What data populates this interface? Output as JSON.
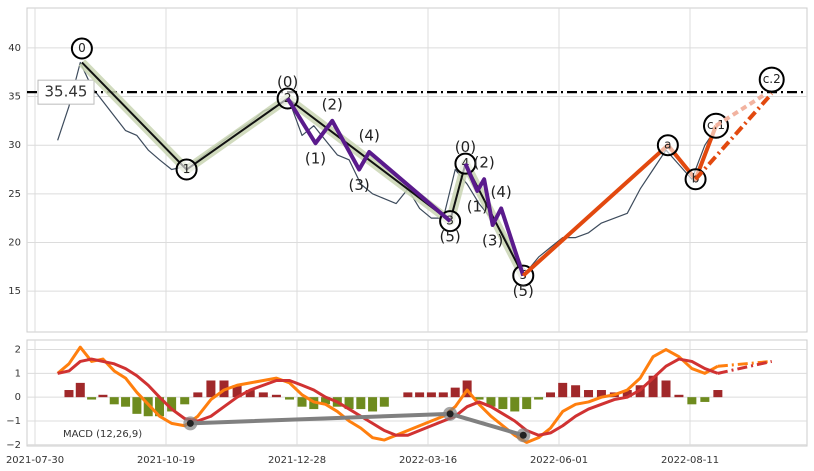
{
  "chart_data": [
    {
      "type": "line",
      "ylim": [
        10.8,
        44.1
      ],
      "yticks": [
        15,
        20,
        25,
        30,
        35,
        40
      ],
      "grid": true,
      "x": [
        "2021-08-13",
        "2021-08-20",
        "2021-08-27",
        "2021-09-03",
        "2021-09-10",
        "2021-09-17",
        "2021-09-24",
        "2021-10-01",
        "2021-10-08",
        "2021-10-15",
        "2021-10-22",
        "2021-10-29",
        "2021-11-05",
        "2021-11-12",
        "2021-11-19",
        "2021-11-26",
        "2021-12-03",
        "2021-12-10",
        "2021-12-17",
        "2021-12-24",
        "2021-12-31",
        "2022-01-07",
        "2022-01-14",
        "2022-01-21",
        "2022-01-28",
        "2022-02-04",
        "2022-02-11",
        "2022-02-18",
        "2022-02-25",
        "2022-03-04",
        "2022-03-11",
        "2022-03-18",
        "2022-03-25",
        "2022-04-01",
        "2022-04-08",
        "2022-04-15",
        "2022-04-22",
        "2022-04-29",
        "2022-05-06",
        "2022-05-13",
        "2022-05-20",
        "2022-05-27",
        "2022-06-03",
        "2022-06-10",
        "2022-06-17",
        "2022-06-24",
        "2022-07-01",
        "2022-07-08",
        "2022-07-15",
        "2022-07-22",
        "2022-07-29",
        "2022-08-05",
        "2022-08-12",
        "2022-08-19",
        "2022-08-26"
      ],
      "series": [
        {
          "color": "#3d4b5c",
          "values": [
            30.5,
            34,
            38.5,
            36,
            34.5,
            33,
            31.5,
            31,
            29.5,
            28.5,
            27.5,
            27.8,
            28.5,
            29.5,
            30.5,
            31.5,
            32.3,
            33.5,
            34,
            34.5,
            31,
            32,
            30.5,
            29,
            28.5,
            26,
            25,
            24.5,
            24,
            25.5,
            23.5,
            22.5,
            22.5,
            27.5,
            26,
            24,
            22.5,
            21,
            18.5,
            17,
            18.5,
            19.5,
            20.5,
            20.5,
            21,
            22,
            22.5,
            23,
            25.5,
            27.5,
            29.5,
            28,
            26.5,
            30,
            32
          ]
        }
      ],
      "hline": {
        "value": 35.45,
        "label": "35.45",
        "color": "#000000",
        "linestyle": "dashdot"
      },
      "waves": [
        {
          "color": "#111111",
          "halo": "#c9d5b3",
          "circled": true,
          "linestyle": "solid",
          "x": [
            "2021-08-28",
            "2021-10-30",
            "2021-12-23",
            "2022-03-29",
            "2022-04-07",
            "2022-05-11"
          ],
          "values": [
            38.5,
            27.5,
            34.8,
            22.2,
            28.1,
            16.6
          ],
          "labels": [
            "0",
            "1",
            "2",
            "3",
            "4",
            "5"
          ]
        },
        {
          "color": "#5a1a8c",
          "circled": false,
          "linestyle": "solid",
          "x": [
            "2021-12-23",
            "2022-01-08",
            "2022-01-18",
            "2022-02-03",
            "2022-02-09",
            "2022-03-29"
          ],
          "values": [
            34.8,
            30.2,
            32.5,
            27.5,
            29.3,
            22.2
          ],
          "labels": [
            "(0)",
            "(1)",
            "(2)",
            "(3)",
            "(4)",
            "(5)"
          ]
        },
        {
          "color": "#5a1a8c",
          "circled": false,
          "linestyle": "solid",
          "x": [
            "2022-04-07",
            "2022-04-14",
            "2022-04-18",
            "2022-04-23",
            "2022-04-28",
            "2022-05-11"
          ],
          "values": [
            28.1,
            25.3,
            26.5,
            21.8,
            23.5,
            16.6
          ],
          "labels": [
            "(0)",
            "(1)",
            "(2)",
            "(3)",
            "(4)",
            "(5)"
          ]
        },
        {
          "color": "#e2490f",
          "circled": true,
          "linestyle": "solid",
          "x": [
            "2022-05-11",
            "2022-07-30",
            "2022-08-14",
            "2022-08-25"
          ],
          "values": [
            16.6,
            30.0,
            26.5,
            32.0
          ],
          "labels": [
            null,
            "a",
            "b",
            "c.1"
          ]
        },
        {
          "color": "#e2490f",
          "circled": true,
          "linestyle": "dashdot",
          "x": [
            "2022-08-14",
            "2022-09-24"
          ],
          "values": [
            26.5,
            35.3
          ],
          "labels": [
            null,
            "c.2"
          ]
        },
        {
          "color": "#f2b3a0",
          "circled": false,
          "linestyle": "dashed",
          "x": [
            "2022-08-25",
            "2022-09-21"
          ],
          "values": [
            32.0,
            35.3
          ]
        }
      ]
    },
    {
      "type": "line",
      "label": "MACD (12,26,9)",
      "ylim": [
        -2.05,
        2.4
      ],
      "yticks": [
        {
          "value": -2,
          "label": "−2"
        },
        {
          "value": -1,
          "label": "−1"
        },
        0,
        1,
        2
      ],
      "grid": true,
      "xlim": [
        "2021-07-25",
        "2022-10-13"
      ],
      "xticks": [
        "2021-07-30",
        "2021-10-19",
        "2021-12-28",
        "2022-03-16",
        "2022-06-01",
        "2022-08-11"
      ],
      "histogram": {
        "positive": "#a0282a",
        "negative": "#6e8b1e",
        "values": [
          0,
          0.3,
          0.6,
          -0.1,
          0.1,
          -0.3,
          -0.4,
          -0.7,
          -0.8,
          -0.8,
          -0.6,
          -0.3,
          0.2,
          0.7,
          0.7,
          0.5,
          0.3,
          0.2,
          0.1,
          -0.1,
          -0.4,
          -0.5,
          -0.3,
          -0.4,
          -0.5,
          -0.5,
          -0.6,
          -0.4,
          0,
          0.2,
          0.2,
          0.2,
          0.2,
          0.4,
          0.7,
          -0.1,
          -0.4,
          -0.5,
          -0.6,
          -0.5,
          -0.1,
          0.2,
          0.6,
          0.5,
          0.3,
          0.3,
          0.2,
          0.3,
          0.5,
          0.9,
          0.7,
          0.1,
          -0.3,
          -0.2,
          0.3
        ]
      },
      "series": [
        {
          "color": "#ff7f0e",
          "values": [
            1.0,
            1.4,
            2.1,
            1.5,
            1.6,
            1.1,
            0.8,
            0.2,
            -0.3,
            -0.8,
            -1.1,
            -1.2,
            -0.8,
            -0.1,
            0.3,
            0.5,
            0.6,
            0.7,
            0.8,
            0.6,
            0.1,
            -0.2,
            -0.3,
            -0.6,
            -1.0,
            -1.3,
            -1.7,
            -1.8,
            -1.6,
            -1.4,
            -1.2,
            -1.0,
            -0.8,
            -0.4,
            0.3,
            -0.3,
            -0.8,
            -1.2,
            -1.6,
            -1.9,
            -1.7,
            -1.3,
            -0.6,
            -0.3,
            -0.2,
            0.0,
            0.1,
            0.3,
            0.8,
            1.7,
            2.0,
            1.7,
            1.2,
            1.0,
            1.3
          ]
        },
        {
          "color": "#d03232",
          "values": [
            1.0,
            1.1,
            1.5,
            1.6,
            1.5,
            1.4,
            1.2,
            0.9,
            0.5,
            0.0,
            -0.5,
            -0.9,
            -1.0,
            -0.8,
            -0.4,
            0.0,
            0.3,
            0.5,
            0.7,
            0.7,
            0.5,
            0.3,
            0.0,
            -0.2,
            -0.5,
            -0.8,
            -1.1,
            -1.4,
            -1.6,
            -1.6,
            -1.4,
            -1.2,
            -1.0,
            -0.8,
            -0.4,
            -0.2,
            -0.4,
            -0.7,
            -1.0,
            -1.4,
            -1.6,
            -1.5,
            -1.2,
            -0.8,
            -0.5,
            -0.3,
            -0.1,
            0.0,
            0.3,
            0.8,
            1.3,
            1.6,
            1.5,
            1.2,
            1.0
          ]
        }
      ],
      "projections": [
        {
          "color": "#ff7f0e",
          "linestyle": "dashdot",
          "x": [
            "2022-08-26",
            "2022-09-24"
          ],
          "values": [
            1.3,
            1.5
          ]
        },
        {
          "color": "#d03232",
          "linestyle": "dashdot",
          "x": [
            "2022-08-26",
            "2022-09-24"
          ],
          "values": [
            1.0,
            1.5
          ]
        }
      ],
      "divergence": {
        "color": "#808080",
        "x": [
          "2021-11-01",
          "2022-03-29",
          "2022-05-11"
        ],
        "values": [
          -1.1,
          -0.7,
          -1.6
        ]
      }
    }
  ]
}
